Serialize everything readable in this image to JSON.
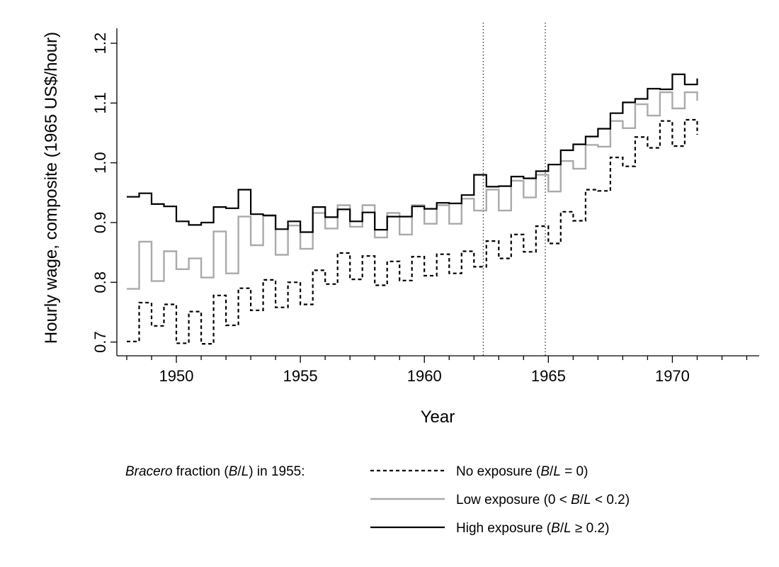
{
  "chart_data": {
    "type": "line",
    "line_style": "step",
    "xlabel": "Year",
    "ylabel": "Hourly wage, composite (1965 US$/hour)",
    "xlim": [
      1947.6,
      1973.5
    ],
    "ylim": [
      0.677,
      1.225
    ],
    "x_ticks": [
      1950,
      1955,
      1960,
      1965,
      1970
    ],
    "x_tick_labels": [
      "1950",
      "1955",
      "1960",
      "1965",
      "1970"
    ],
    "y_ticks": [
      0.7,
      0.8,
      0.9,
      1.0,
      1.1,
      1.2
    ],
    "y_tick_labels": [
      "0.7",
      "0.8",
      "0.9",
      "1.0",
      "1.1",
      "1.2"
    ],
    "vertical_reference_lines": [
      1962.375,
      1964.875
    ],
    "x": [
      1948.0,
      1948.5,
      1949.0,
      1949.5,
      1950.0,
      1950.5,
      1951.0,
      1951.5,
      1952.0,
      1952.5,
      1953.0,
      1953.5,
      1954.0,
      1954.5,
      1955.0,
      1955.5,
      1956.0,
      1956.5,
      1957.0,
      1957.5,
      1958.0,
      1958.5,
      1959.0,
      1959.5,
      1960.0,
      1960.5,
      1961.0,
      1961.5,
      1962.0,
      1962.5,
      1963.0,
      1963.5,
      1964.0,
      1964.5,
      1965.0,
      1965.5,
      1966.0,
      1966.5,
      1967.0,
      1967.5,
      1968.0,
      1968.5,
      1969.0,
      1969.5,
      1970.0,
      1970.5,
      1971.0
    ],
    "series": [
      {
        "name": "No exposure (B/L = 0)",
        "color": "#000000",
        "dash": "dashed",
        "values": [
          0.701,
          0.766,
          0.727,
          0.763,
          0.698,
          0.751,
          0.697,
          0.778,
          0.728,
          0.79,
          0.753,
          0.804,
          0.758,
          0.8,
          0.763,
          0.82,
          0.797,
          0.849,
          0.805,
          0.844,
          0.795,
          0.835,
          0.803,
          0.843,
          0.811,
          0.847,
          0.815,
          0.852,
          0.826,
          0.869,
          0.84,
          0.88,
          0.851,
          0.894,
          0.865,
          0.918,
          0.903,
          0.955,
          0.953,
          1.009,
          0.994,
          1.043,
          1.025,
          1.07,
          1.028,
          1.072,
          1.047
        ]
      },
      {
        "name": "Low exposure (0 < B/L < 0.2)",
        "color": "#aaaaaa",
        "dash": "solid",
        "values": [
          0.789,
          0.868,
          0.802,
          0.852,
          0.822,
          0.84,
          0.808,
          0.885,
          0.815,
          0.91,
          0.862,
          0.911,
          0.846,
          0.895,
          0.856,
          0.916,
          0.89,
          0.929,
          0.893,
          0.929,
          0.875,
          0.916,
          0.88,
          0.929,
          0.898,
          0.929,
          0.898,
          0.94,
          0.92,
          0.955,
          0.92,
          0.97,
          0.942,
          0.98,
          0.952,
          1.003,
          0.99,
          1.03,
          1.027,
          1.07,
          1.058,
          1.098,
          1.079,
          1.118,
          1.091,
          1.118,
          1.104
        ]
      },
      {
        "name": "High exposure (B/L ≥ 0.2)",
        "color": "#000000",
        "dash": "solid",
        "values": [
          0.943,
          0.949,
          0.931,
          0.927,
          0.902,
          0.896,
          0.9,
          0.926,
          0.924,
          0.955,
          0.914,
          0.912,
          0.889,
          0.902,
          0.884,
          0.926,
          0.909,
          0.922,
          0.902,
          0.917,
          0.888,
          0.91,
          0.91,
          0.927,
          0.923,
          0.933,
          0.932,
          0.946,
          0.98,
          0.96,
          0.961,
          0.977,
          0.974,
          0.986,
          0.997,
          1.021,
          1.031,
          1.044,
          1.057,
          1.083,
          1.101,
          1.107,
          1.124,
          1.123,
          1.148,
          1.131,
          1.141
        ]
      }
    ],
    "legend": {
      "placement": "bottom",
      "title_parts": [
        {
          "text": "Bracero",
          "italic": true
        },
        {
          "text": " fraction (",
          "italic": false
        },
        {
          "text": "B",
          "italic": true
        },
        {
          "text": "/",
          "italic": false
        },
        {
          "text": "L",
          "italic": true
        },
        {
          "text": ") in 1955:",
          "italic": false
        }
      ],
      "entries": [
        {
          "series": 0,
          "label_parts": [
            {
              "text": "No exposure (",
              "italic": false
            },
            {
              "text": "B",
              "italic": true
            },
            {
              "text": "/",
              "italic": false
            },
            {
              "text": "L",
              "italic": true
            },
            {
              "text": " = 0)",
              "italic": false
            }
          ]
        },
        {
          "series": 1,
          "label_parts": [
            {
              "text": "Low exposure (0 < ",
              "italic": false
            },
            {
              "text": "B",
              "italic": true
            },
            {
              "text": "/",
              "italic": false
            },
            {
              "text": "L",
              "italic": true
            },
            {
              "text": " < 0.2)",
              "italic": false
            }
          ]
        },
        {
          "series": 2,
          "label_parts": [
            {
              "text": "High exposure (",
              "italic": false
            },
            {
              "text": "B",
              "italic": true
            },
            {
              "text": "/",
              "italic": false
            },
            {
              "text": "L",
              "italic": true
            },
            {
              "text": " ≥ 0.2)",
              "italic": false
            }
          ]
        }
      ]
    }
  }
}
